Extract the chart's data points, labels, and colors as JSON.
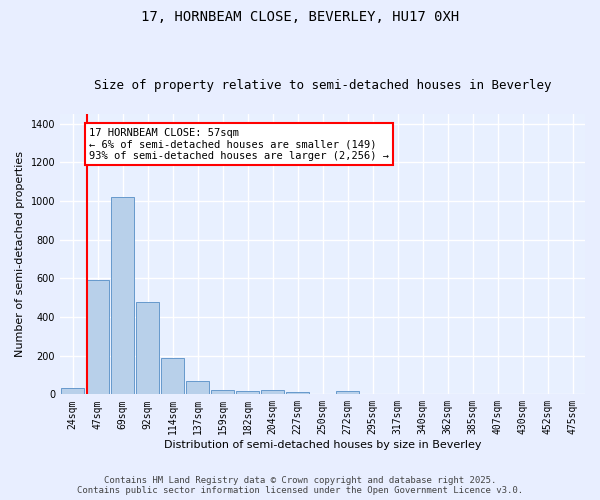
{
  "title": "17, HORNBEAM CLOSE, BEVERLEY, HU17 0XH",
  "subtitle": "Size of property relative to semi-detached houses in Beverley",
  "xlabel": "Distribution of semi-detached houses by size in Beverley",
  "ylabel": "Number of semi-detached properties",
  "categories": [
    "24sqm",
    "47sqm",
    "69sqm",
    "92sqm",
    "114sqm",
    "137sqm",
    "159sqm",
    "182sqm",
    "204sqm",
    "227sqm",
    "250sqm",
    "272sqm",
    "295sqm",
    "317sqm",
    "340sqm",
    "362sqm",
    "385sqm",
    "407sqm",
    "430sqm",
    "452sqm",
    "475sqm"
  ],
  "values": [
    35,
    590,
    1020,
    480,
    190,
    70,
    25,
    15,
    20,
    10,
    0,
    15,
    0,
    0,
    0,
    0,
    0,
    0,
    0,
    0,
    0
  ],
  "bar_color": "#b8d0ea",
  "bar_edge_color": "#6699cc",
  "vline_color": "red",
  "vline_pos": 0.57,
  "annotation_text": "17 HORNBEAM CLOSE: 57sqm\n← 6% of semi-detached houses are smaller (149)\n93% of semi-detached houses are larger (2,256) →",
  "annotation_box_facecolor": "white",
  "annotation_box_edgecolor": "red",
  "ylim": [
    0,
    1450
  ],
  "yticks": [
    0,
    200,
    400,
    600,
    800,
    1000,
    1200,
    1400
  ],
  "background_color": "#e8eeff",
  "plot_background_color": "#e8f0ff",
  "grid_color": "white",
  "title_fontsize": 10,
  "subtitle_fontsize": 9,
  "xlabel_fontsize": 8,
  "ylabel_fontsize": 8,
  "tick_fontsize": 7,
  "annotation_fontsize": 7.5,
  "footer_fontsize": 6.5,
  "footer_line1": "Contains HM Land Registry data © Crown copyright and database right 2025.",
  "footer_line2": "Contains public sector information licensed under the Open Government Licence v3.0."
}
